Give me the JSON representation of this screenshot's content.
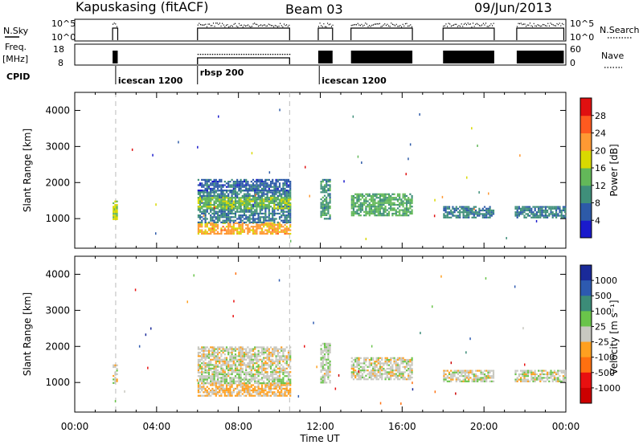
{
  "header": {
    "title": "Kapuskasing (fitACF)",
    "beam": "Beam 03",
    "date": "09/Jun/2013"
  },
  "panels": {
    "nsky": {
      "left_label": "N.Sky",
      "top_tick": "10^5",
      "bottom_tick": "10^0",
      "right_label": "N.Search"
    },
    "freq": {
      "left_label_1": "Freq.",
      "left_label_2": "[MHz]",
      "ticks": [
        "18",
        "8"
      ],
      "right_ticks": [
        "60",
        "0"
      ],
      "right_label": "Nave"
    },
    "cpid": {
      "label": "CPID",
      "modes": [
        {
          "name": "icescan 1200",
          "start_h": 2.0
        },
        {
          "name": "rbsp 200",
          "start_h": 6.0
        },
        {
          "name": "icescan 1200",
          "start_h": 12.0
        }
      ]
    }
  },
  "axes": {
    "xlabel": "Time UT",
    "xticks": [
      "00:00",
      "04:00",
      "08:00",
      "12:00",
      "16:00",
      "20:00",
      "00:00"
    ],
    "ylabel": "Slant Range [km]",
    "yticks": [
      "1000",
      "2000",
      "3000",
      "4000"
    ]
  },
  "colorbars": {
    "power": {
      "label": "Power [dB]",
      "ticks": [
        "4",
        "8",
        "12",
        "16",
        "20",
        "24",
        "28"
      ],
      "colors": [
        "#1a1acc",
        "#2d5aa8",
        "#3f8f7a",
        "#63b859",
        "#d9d900",
        "#ff9933",
        "#ff5a1f",
        "#e01010"
      ]
    },
    "velocity": {
      "label": "Velocity [m s⁻¹]",
      "ticks": [
        "1000",
        "500",
        "100",
        "25",
        "-25",
        "-100",
        "-500",
        "-1000"
      ],
      "colors": [
        "#1a2a99",
        "#2d5ab0",
        "#3c8c78",
        "#6ac44a",
        "#c8c8c0",
        "#ffa020",
        "#ff7010",
        "#e81010",
        "#cc0000"
      ]
    }
  },
  "chart_data": [
    {
      "type": "heatmap",
      "title": "",
      "xlabel": "Time UT",
      "ylabel": "Slant Range [km]",
      "xlim": [
        0,
        24
      ],
      "ylim": [
        180,
        4500
      ],
      "colorbar_label": "Power [dB]",
      "clim": [
        0,
        30
      ],
      "regions": [
        {
          "t0": 1.85,
          "t1": 2.05,
          "r0": 1000,
          "r1": 1500,
          "value": 16
        },
        {
          "t0": 6.0,
          "t1": 10.5,
          "r0": 600,
          "r1": 900,
          "value": 20
        },
        {
          "t0": 6.0,
          "t1": 10.5,
          "r0": 900,
          "r1": 1800,
          "value": 8
        },
        {
          "t0": 6.0,
          "t1": 10.5,
          "r0": 1300,
          "r1": 1600,
          "value": 14
        },
        {
          "t0": 6.0,
          "t1": 10.5,
          "r0": 1800,
          "r1": 2100,
          "value": 6
        },
        {
          "t0": 12.0,
          "t1": 12.5,
          "r0": 1000,
          "r1": 2100,
          "value": 10
        },
        {
          "t0": 13.5,
          "t1": 16.5,
          "r0": 1100,
          "r1": 1700,
          "value": 12
        },
        {
          "t0": 18.0,
          "t1": 20.5,
          "r0": 1050,
          "r1": 1350,
          "value": 8
        },
        {
          "t0": 21.5,
          "t1": 24.0,
          "r0": 1050,
          "r1": 1350,
          "value": 8
        }
      ]
    },
    {
      "type": "heatmap",
      "title": "",
      "xlabel": "Time UT",
      "ylabel": "Slant Range [km]",
      "xlim": [
        0,
        24
      ],
      "ylim": [
        180,
        4500
      ],
      "colorbar_label": "Velocity [m s⁻¹]",
      "clim": [
        -1000,
        1000
      ],
      "regions": [
        {
          "t0": 1.85,
          "t1": 2.05,
          "r0": 1000,
          "r1": 1500,
          "value": 0
        },
        {
          "t0": 6.0,
          "t1": 10.5,
          "r0": 650,
          "r1": 1000,
          "value": -150
        },
        {
          "t0": 6.0,
          "t1": 10.5,
          "r0": 1000,
          "r1": 1300,
          "value": 60
        },
        {
          "t0": 6.0,
          "t1": 10.5,
          "r0": 1300,
          "r1": 2000,
          "value": 0
        },
        {
          "t0": 12.0,
          "t1": 12.5,
          "r0": 1000,
          "r1": 2100,
          "value": 60
        },
        {
          "t0": 13.5,
          "t1": 16.5,
          "r0": 1100,
          "r1": 1700,
          "value": 0
        },
        {
          "t0": 18.0,
          "t1": 20.5,
          "r0": 1050,
          "r1": 1350,
          "value": 0
        },
        {
          "t0": 21.5,
          "t1": 24.0,
          "r0": 1050,
          "r1": 1350,
          "value": 0
        }
      ]
    }
  ]
}
